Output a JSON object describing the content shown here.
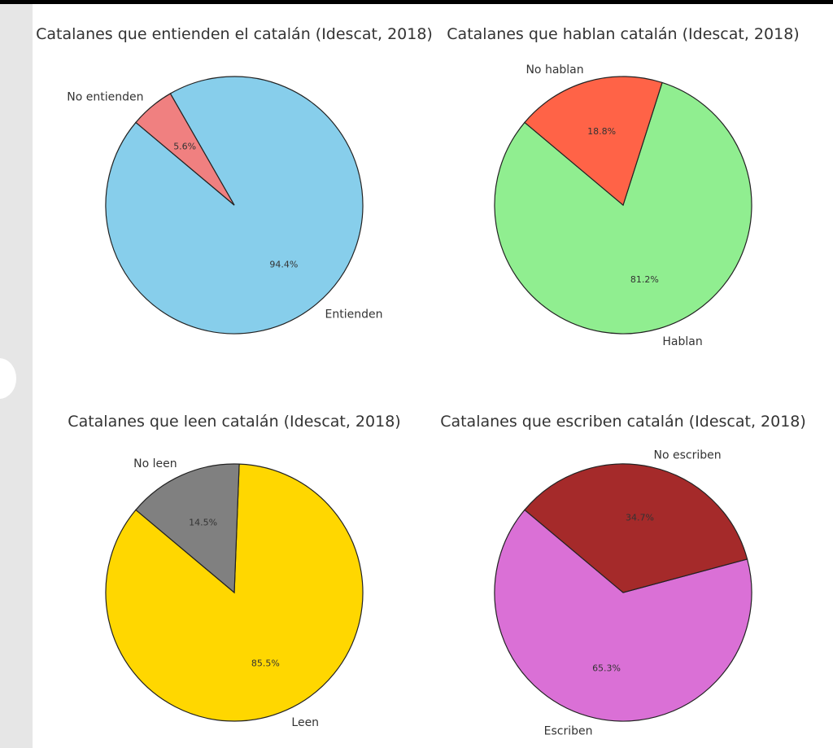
{
  "chart_data": [
    {
      "type": "pie",
      "title": "Catalanes que entienden el catalán (Idescat, 2018)",
      "labels": [
        "Entienden",
        "No entienden"
      ],
      "values": [
        94.4,
        5.6
      ],
      "pct_labels": [
        "94.4%",
        "5.6%"
      ],
      "colors": [
        "#87ceeb",
        "#f08080"
      ],
      "startangle": 140
    },
    {
      "type": "pie",
      "title": "Catalanes que hablan catalán (Idescat, 2018)",
      "labels": [
        "Hablan",
        "No hablan"
      ],
      "values": [
        81.2,
        18.8
      ],
      "pct_labels": [
        "81.2%",
        "18.8%"
      ],
      "colors": [
        "#90ee90",
        "#ff6347"
      ],
      "startangle": 140
    },
    {
      "type": "pie",
      "title": "Catalanes que leen catalán (Idescat, 2018)",
      "labels": [
        "Leen",
        "No leen"
      ],
      "values": [
        85.5,
        14.5
      ],
      "pct_labels": [
        "85.5%",
        "14.5%"
      ],
      "colors": [
        "#ffd700",
        "#808080"
      ],
      "startangle": 140
    },
    {
      "type": "pie",
      "title": "Catalanes que escriben catalán (Idescat, 2018)",
      "labels": [
        "Escriben",
        "No escriben"
      ],
      "values": [
        65.3,
        34.7
      ],
      "pct_labels": [
        "65.3%",
        "34.7%"
      ],
      "colors": [
        "#da70d6",
        "#a52a2a"
      ],
      "startangle": 140
    }
  ]
}
